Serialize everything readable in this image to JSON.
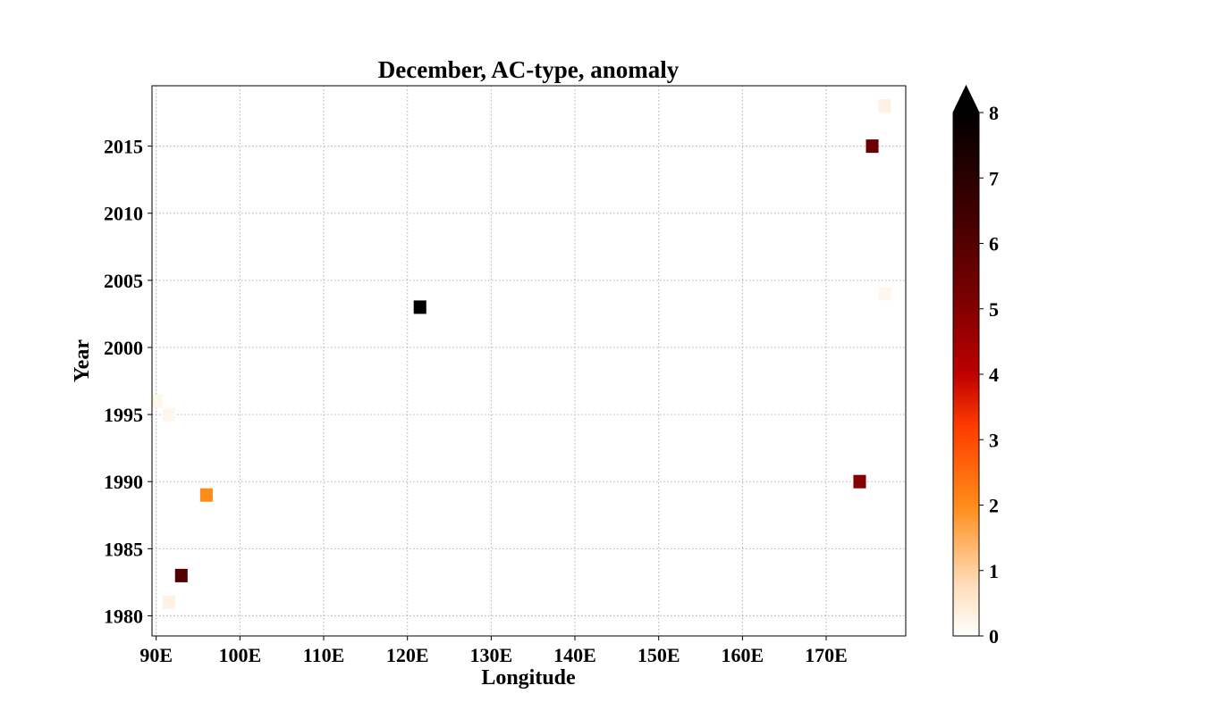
{
  "chart_data": {
    "type": "heatmap",
    "title": "December, AC-type, anomaly",
    "xlabel": "Longitude",
    "ylabel": "Year",
    "xlim": [
      89.5,
      179.5
    ],
    "ylim": [
      1978.5,
      2019.5
    ],
    "xticks": [
      {
        "value": 90,
        "label": "90E"
      },
      {
        "value": 100,
        "label": "100E"
      },
      {
        "value": 110,
        "label": "110E"
      },
      {
        "value": 120,
        "label": "120E"
      },
      {
        "value": 130,
        "label": "130E"
      },
      {
        "value": 140,
        "label": "140E"
      },
      {
        "value": 150,
        "label": "150E"
      },
      {
        "value": 160,
        "label": "160E"
      },
      {
        "value": 170,
        "label": "170E"
      }
    ],
    "yticks": [
      {
        "value": 1980,
        "label": "1980"
      },
      {
        "value": 1985,
        "label": "1985"
      },
      {
        "value": 1990,
        "label": "1990"
      },
      {
        "value": 1995,
        "label": "1995"
      },
      {
        "value": 2000,
        "label": "2000"
      },
      {
        "value": 2005,
        "label": "2005"
      },
      {
        "value": 2010,
        "label": "2010"
      },
      {
        "value": 2015,
        "label": "2015"
      }
    ],
    "grid": true,
    "cell": {
      "lon_width": 1.5,
      "year_height": 1
    },
    "points": [
      {
        "lon": 90.0,
        "year": 1996,
        "value": 0.2
      },
      {
        "lon": 91.5,
        "year": 1995,
        "value": 0.2
      },
      {
        "lon": 91.5,
        "year": 1981,
        "value": 0.3
      },
      {
        "lon": 93.0,
        "year": 1983,
        "value": 6.0
      },
      {
        "lon": 96.0,
        "year": 1989,
        "value": 2.0
      },
      {
        "lon": 121.5,
        "year": 2003,
        "value": 8.0
      },
      {
        "lon": 174.0,
        "year": 1990,
        "value": 5.0
      },
      {
        "lon": 175.5,
        "year": 2015,
        "value": 5.5
      },
      {
        "lon": 177.0,
        "year": 2018,
        "value": 0.3
      },
      {
        "lon": 177.0,
        "year": 2004,
        "value": 0.2
      }
    ],
    "colorbar": {
      "colormap": "gist_heat_r",
      "vmin": 0,
      "vmax": 8,
      "extend": "max",
      "ticks": [
        {
          "value": 0,
          "label": "0"
        },
        {
          "value": 1,
          "label": "1"
        },
        {
          "value": 2,
          "label": "2"
        },
        {
          "value": 3,
          "label": "3"
        },
        {
          "value": 4,
          "label": "4"
        },
        {
          "value": 5,
          "label": "5"
        },
        {
          "value": 6,
          "label": "6"
        },
        {
          "value": 7,
          "label": "7"
        },
        {
          "value": 8,
          "label": "8"
        }
      ]
    }
  }
}
